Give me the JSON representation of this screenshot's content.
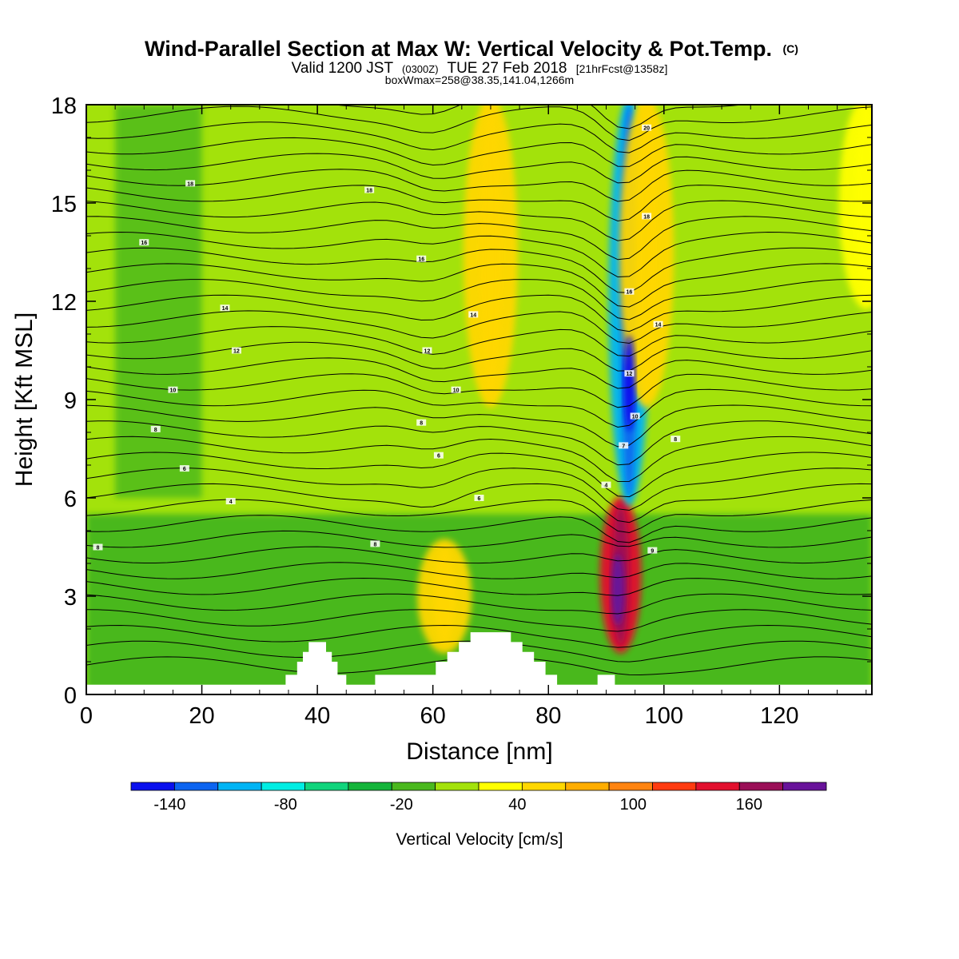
{
  "chart_data": {
    "type": "heatmap",
    "title": "Wind-Parallel Section at Max W: Vertical Velocity & Pot.Temp.",
    "title_mark": "(C)",
    "subtitle_main": "Valid 1200 JST",
    "subtitle_utc": "(0300Z)",
    "subtitle_date": "TUE 27 Feb 2018",
    "subtitle_fcst": "[21hrFcst@1358z]",
    "subtitle2": "boxWmax=258@38.35,141.04,1266m",
    "xlabel": "Distance [nm]",
    "ylabel": "Height [Kft MSL]",
    "xlim": [
      0,
      136
    ],
    "ylim": [
      0,
      18
    ],
    "xticks": [
      0,
      20,
      40,
      60,
      80,
      100,
      120
    ],
    "yticks": [
      0,
      3,
      6,
      9,
      12,
      15,
      18
    ],
    "colorbar_label": "Vertical Velocity [cm/s]",
    "colorbar_ticks": [
      -140,
      -80,
      -20,
      40,
      100,
      160
    ],
    "colorbar_range": [
      -160,
      200
    ],
    "colorbar_colors": [
      "#0a10ee",
      "#0c64f0",
      "#00b4f5",
      "#00ede3",
      "#10d47c",
      "#14b43a",
      "#4ab81e",
      "#a3e20b",
      "#ffff00",
      "#ffd700",
      "#ffad00",
      "#ff8410",
      "#ff3b10",
      "#e2102e",
      "#9a0f57",
      "#68139a"
    ],
    "max_updraft": {
      "distance_nm": 92,
      "height_kft": 3.2,
      "value_cms": 258
    },
    "max_downdraft": {
      "distance_nm": 94,
      "height_kft": 9.5,
      "value_cms": -150
    },
    "vertical_features": [
      {
        "distance_nm": 92.5,
        "w_cms": 140,
        "from_kft": 1.5,
        "to_kft": 5.8
      },
      {
        "distance_nm": 62,
        "w_cms": 50,
        "from_kft": 1.5,
        "to_kft": 4.5
      },
      {
        "distance_nm": 94,
        "w_cms": -100,
        "from_kft": 6,
        "to_kft": 18
      },
      {
        "distance_nm": 70,
        "w_cms": 45,
        "from_kft": 9,
        "to_kft": 18
      },
      {
        "distance_nm": 97,
        "w_cms": 45,
        "from_kft": 9,
        "to_kft": 18
      },
      {
        "distance_nm": 135,
        "w_cms": 30,
        "from_kft": 12,
        "to_kft": 18
      }
    ],
    "terrain_kft": [
      [
        0,
        0.3
      ],
      [
        34.5,
        0.3
      ],
      [
        34.5,
        0.6
      ],
      [
        36.5,
        0.6
      ],
      [
        36.5,
        1.0
      ],
      [
        37.5,
        1.0
      ],
      [
        37.5,
        1.3
      ],
      [
        38.5,
        1.3
      ],
      [
        38.5,
        1.6
      ],
      [
        41.5,
        1.6
      ],
      [
        41.5,
        1.3
      ],
      [
        42.5,
        1.3
      ],
      [
        42.5,
        1.0
      ],
      [
        43.5,
        1.0
      ],
      [
        43.5,
        0.6
      ],
      [
        45,
        0.6
      ],
      [
        45,
        0.3
      ],
      [
        50,
        0.3
      ],
      [
        50,
        0.6
      ],
      [
        60.5,
        0.6
      ],
      [
        60.5,
        1.0
      ],
      [
        62.5,
        1.0
      ],
      [
        62.5,
        1.3
      ],
      [
        64.5,
        1.3
      ],
      [
        64.5,
        1.6
      ],
      [
        66.5,
        1.6
      ],
      [
        66.5,
        1.9
      ],
      [
        73.5,
        1.9
      ],
      [
        73.5,
        1.6
      ],
      [
        75.5,
        1.6
      ],
      [
        75.5,
        1.3
      ],
      [
        77.5,
        1.3
      ],
      [
        77.5,
        1.0
      ],
      [
        79.5,
        1.0
      ],
      [
        79.5,
        0.6
      ],
      [
        81.5,
        0.6
      ],
      [
        81.5,
        0.3
      ],
      [
        88.5,
        0.3
      ],
      [
        88.5,
        0.6
      ],
      [
        91.5,
        0.6
      ],
      [
        91.5,
        0.3
      ],
      [
        136,
        0.3
      ]
    ],
    "isentrope_labels": [
      {
        "text": "8",
        "x": 2,
        "y": 4.5
      },
      {
        "text": "8",
        "x": 50,
        "y": 4.6
      },
      {
        "text": "9",
        "x": 98,
        "y": 4.4
      },
      {
        "text": "4",
        "x": 25,
        "y": 5.9
      },
      {
        "text": "6",
        "x": 68,
        "y": 6.0
      },
      {
        "text": "4",
        "x": 90,
        "y": 6.4
      },
      {
        "text": "6",
        "x": 17,
        "y": 6.9
      },
      {
        "text": "6",
        "x": 61,
        "y": 7.3
      },
      {
        "text": "7",
        "x": 93,
        "y": 7.6
      },
      {
        "text": "8",
        "x": 12,
        "y": 8.1
      },
      {
        "text": "8",
        "x": 58,
        "y": 8.3
      },
      {
        "text": "8",
        "x": 102,
        "y": 7.8
      },
      {
        "text": "10",
        "x": 15,
        "y": 9.3
      },
      {
        "text": "10",
        "x": 64,
        "y": 9.3
      },
      {
        "text": "10",
        "x": 95,
        "y": 8.5
      },
      {
        "text": "12",
        "x": 26,
        "y": 10.5
      },
      {
        "text": "12",
        "x": 59,
        "y": 10.5
      },
      {
        "text": "12",
        "x": 94,
        "y": 9.8
      },
      {
        "text": "14",
        "x": 24,
        "y": 11.8
      },
      {
        "text": "14",
        "x": 67,
        "y": 11.6
      },
      {
        "text": "14",
        "x": 99,
        "y": 11.3
      },
      {
        "text": "16",
        "x": 10,
        "y": 13.8
      },
      {
        "text": "16",
        "x": 58,
        "y": 13.3
      },
      {
        "text": "16",
        "x": 94,
        "y": 12.3
      },
      {
        "text": "18",
        "x": 18,
        "y": 15.6
      },
      {
        "text": "18",
        "x": 49,
        "y": 15.4
      },
      {
        "text": "18",
        "x": 97,
        "y": 14.6
      },
      {
        "text": "20",
        "x": 97,
        "y": 17.3
      }
    ]
  }
}
